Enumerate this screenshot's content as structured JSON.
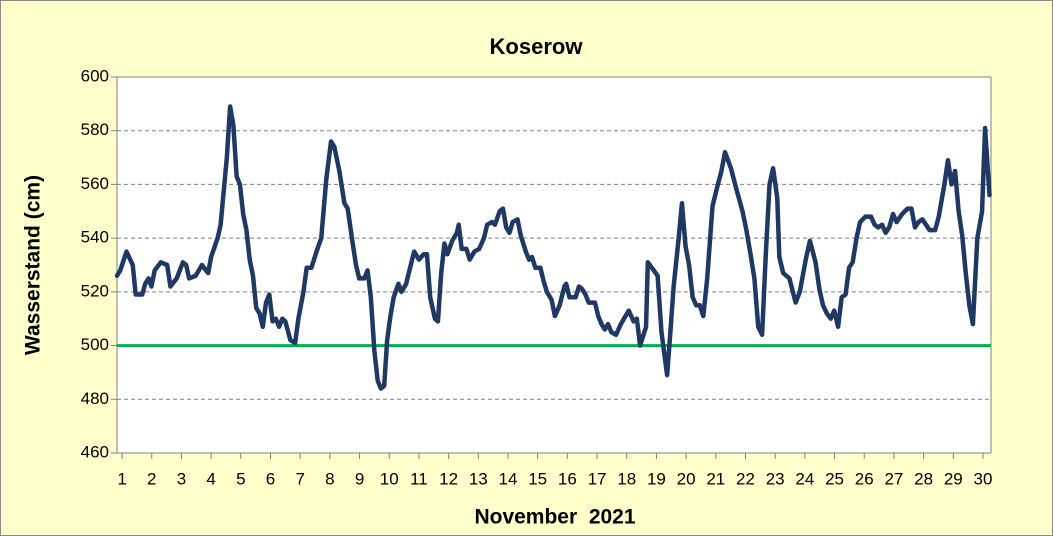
{
  "chart_data": {
    "type": "line",
    "title": "Koserow",
    "y_label": "Wasserstand (cm)",
    "x_label": "November  2021",
    "color": "#1f3864",
    "x": [
      0.83,
      0.94,
      1.15,
      1.36,
      1.46,
      1.68,
      1.78,
      1.89,
      1.99,
      2.1,
      2.31,
      2.52,
      2.63,
      2.84,
      3.05,
      3.16,
      3.26,
      3.48,
      3.69,
      3.9,
      4.0,
      4.22,
      4.32,
      4.53,
      4.64,
      4.75,
      4.86,
      4.97,
      5.08,
      5.19,
      5.3,
      5.41,
      5.52,
      5.63,
      5.74,
      5.85,
      5.96,
      6.07,
      6.18,
      6.29,
      6.4,
      6.5,
      6.67,
      6.83,
      6.94,
      7.11,
      7.22,
      7.38,
      7.55,
      7.71,
      7.88,
      8.04,
      8.15,
      8.32,
      8.49,
      8.6,
      8.77,
      8.88,
      8.99,
      9.16,
      9.27,
      9.38,
      9.5,
      9.61,
      9.72,
      9.83,
      9.93,
      10.04,
      10.15,
      10.31,
      10.41,
      10.57,
      10.68,
      10.84,
      11.0,
      11.16,
      11.27,
      11.38,
      11.54,
      11.64,
      11.75,
      11.86,
      11.96,
      12.12,
      12.28,
      12.34,
      12.44,
      12.6,
      12.71,
      12.87,
      13.03,
      13.19,
      13.3,
      13.46,
      13.56,
      13.72,
      13.83,
      13.94,
      14.05,
      14.16,
      14.32,
      14.43,
      14.6,
      14.71,
      14.81,
      14.92,
      15.09,
      15.2,
      15.31,
      15.47,
      15.58,
      15.74,
      15.9,
      15.96,
      16.07,
      16.28,
      16.39,
      16.5,
      16.61,
      16.72,
      16.93,
      17.04,
      17.15,
      17.26,
      17.37,
      17.48,
      17.64,
      17.8,
      17.96,
      18.07,
      18.23,
      18.34,
      18.45,
      18.65,
      18.71,
      18.91,
      19.04,
      19.17,
      19.36,
      19.47,
      19.58,
      19.75,
      19.86,
      19.98,
      20.1,
      20.22,
      20.34,
      20.46,
      20.58,
      20.71,
      20.89,
      21.07,
      21.19,
      21.31,
      21.51,
      21.7,
      21.9,
      22.03,
      22.17,
      22.3,
      22.43,
      22.56,
      22.68,
      22.81,
      22.93,
      23.07,
      23.14,
      23.27,
      23.48,
      23.69,
      23.83,
      24.03,
      24.17,
      24.36,
      24.49,
      24.61,
      24.74,
      24.87,
      24.99,
      25.12,
      25.24,
      25.37,
      25.49,
      25.61,
      25.74,
      25.86,
      26.04,
      26.23,
      26.35,
      26.47,
      26.6,
      26.72,
      26.84,
      26.97,
      27.09,
      27.28,
      27.46,
      27.59,
      27.71,
      27.83,
      27.96,
      28.08,
      28.2,
      28.39,
      28.51,
      28.7,
      28.82,
      28.94,
      29.06,
      29.18,
      29.3,
      29.42,
      29.54,
      29.66,
      29.81,
      29.97,
      30.07,
      30.22
    ],
    "values": [
      526,
      528,
      535,
      530,
      519,
      519,
      523,
      525,
      522,
      528,
      531,
      530,
      522,
      525,
      531,
      530,
      525,
      526,
      530,
      527,
      533,
      540,
      545,
      570,
      589,
      582,
      563,
      560,
      549,
      543,
      532,
      526,
      514,
      512,
      507,
      516,
      519,
      509,
      510,
      507,
      510,
      509,
      502,
      501,
      510,
      520,
      529,
      529,
      535,
      540,
      562,
      576,
      574,
      565,
      553,
      551,
      538,
      530,
      525,
      525,
      528,
      518,
      498,
      487,
      484,
      485,
      502,
      511,
      518,
      523,
      520,
      523,
      528,
      535,
      532,
      534,
      534,
      518,
      510,
      509,
      527,
      538,
      534,
      539,
      542,
      545,
      536,
      536,
      532,
      535,
      536,
      540,
      545,
      546,
      545,
      550,
      551,
      544,
      542,
      546,
      547,
      541,
      535,
      532,
      533,
      529,
      529,
      524,
      520,
      517,
      511,
      515,
      522,
      523,
      518,
      518,
      522,
      521,
      519,
      516,
      516,
      511,
      508,
      506,
      508,
      505,
      504,
      508,
      511,
      513,
      509,
      510,
      500,
      507,
      531,
      528,
      526,
      505,
      489,
      505,
      522,
      540,
      553,
      537,
      530,
      518,
      515,
      515,
      511,
      525,
      552,
      560,
      565,
      572,
      566,
      558,
      550,
      543,
      534,
      525,
      507,
      504,
      533,
      560,
      566,
      555,
      533,
      527,
      525,
      516,
      520,
      532,
      539,
      531,
      521,
      515,
      512,
      510,
      513,
      507,
      518,
      519,
      529,
      531,
      540,
      546,
      548,
      548,
      545,
      544,
      545,
      542,
      544,
      549,
      546,
      549,
      551,
      551,
      544,
      546,
      547,
      545,
      543,
      543,
      548,
      560,
      569,
      560,
      565,
      550,
      541,
      527,
      515,
      508,
      540,
      550,
      581,
      556
    ],
    "xlim": [
      0.83,
      30.27
    ],
    "xticks": [
      1,
      2,
      3,
      4,
      5,
      6,
      7,
      8,
      9,
      10,
      11,
      12,
      13,
      14,
      15,
      16,
      17,
      18,
      19,
      20,
      21,
      22,
      23,
      24,
      25,
      26,
      27,
      28,
      29,
      30
    ],
    "ylim": [
      460,
      600
    ],
    "yticks": [
      460,
      480,
      500,
      520,
      540,
      560,
      580,
      600
    ],
    "grid": true,
    "reference_lines": [
      {
        "value": 500,
        "color": "#00b050"
      }
    ]
  }
}
